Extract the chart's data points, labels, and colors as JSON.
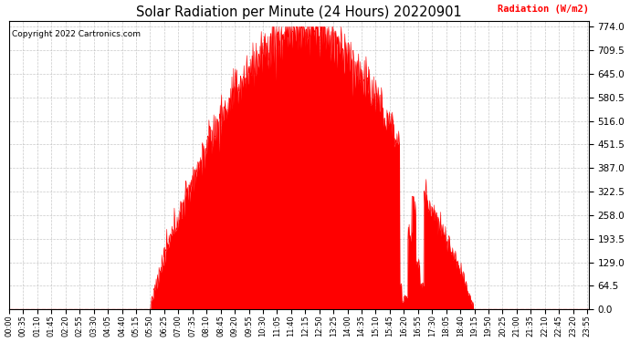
{
  "title": "Solar Radiation per Minute (24 Hours) 20220901",
  "ylabel": "Radiation (W/m2)",
  "copyright_text": "Copyright 2022 Cartronics.com",
  "fill_color": "#ff0000",
  "line_color": "#ff0000",
  "background_color": "#ffffff",
  "grid_color": "#aaaaaa",
  "ylabel_color": "#ff0000",
  "title_color": "#000000",
  "yticks": [
    0.0,
    64.5,
    129.0,
    193.5,
    258.0,
    322.5,
    387.0,
    451.5,
    516.0,
    580.5,
    645.0,
    709.5,
    774.0
  ],
  "ymax": 774.0,
  "ymin": 0.0,
  "total_minutes": 1440,
  "sunrise_minute": 350,
  "sunset_minute": 1155,
  "peak_minute": 760,
  "peak_value": 774.0,
  "tick_interval": 35
}
